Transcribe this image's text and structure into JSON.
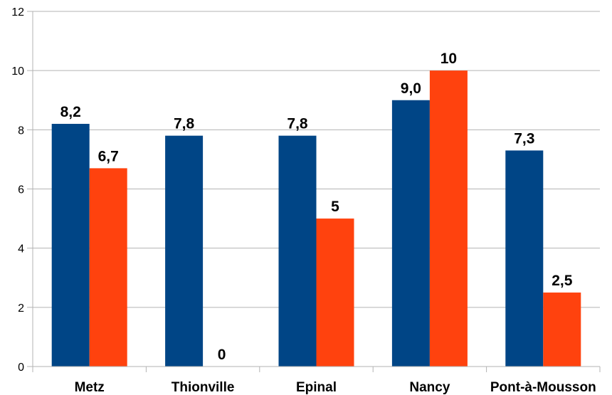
{
  "chart_data": {
    "type": "bar",
    "categories": [
      "Metz",
      "Thionville",
      "Epinal",
      "Nancy",
      "Pont-à-Mousson"
    ],
    "series": [
      {
        "values": [
          8.2,
          7.8,
          7.8,
          9.0,
          7.3
        ],
        "labels": [
          "8,2",
          "7,8",
          "7,8",
          "9,0",
          "7,3"
        ],
        "color": "#004586"
      },
      {
        "values": [
          6.7,
          0,
          5,
          10,
          2.5
        ],
        "labels": [
          "6,7",
          "0",
          "5",
          "10",
          "2,5"
        ],
        "color": "#ff420e"
      }
    ],
    "ylim": [
      0,
      12
    ],
    "yticks": [
      "0",
      "2",
      "4",
      "6",
      "8",
      "10",
      "12"
    ],
    "grid": true,
    "legend": "none"
  }
}
